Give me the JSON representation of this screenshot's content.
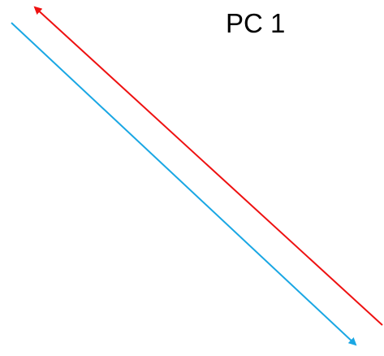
{
  "diagram": {
    "label": "PC 1",
    "colors": {
      "red_arrow": "#ee1111",
      "blue_arrow": "#1aa7e4",
      "text": "#000000"
    },
    "arrows": [
      {
        "name": "red-arrow",
        "direction": "up-left"
      },
      {
        "name": "blue-arrow",
        "direction": "down-right"
      }
    ]
  }
}
